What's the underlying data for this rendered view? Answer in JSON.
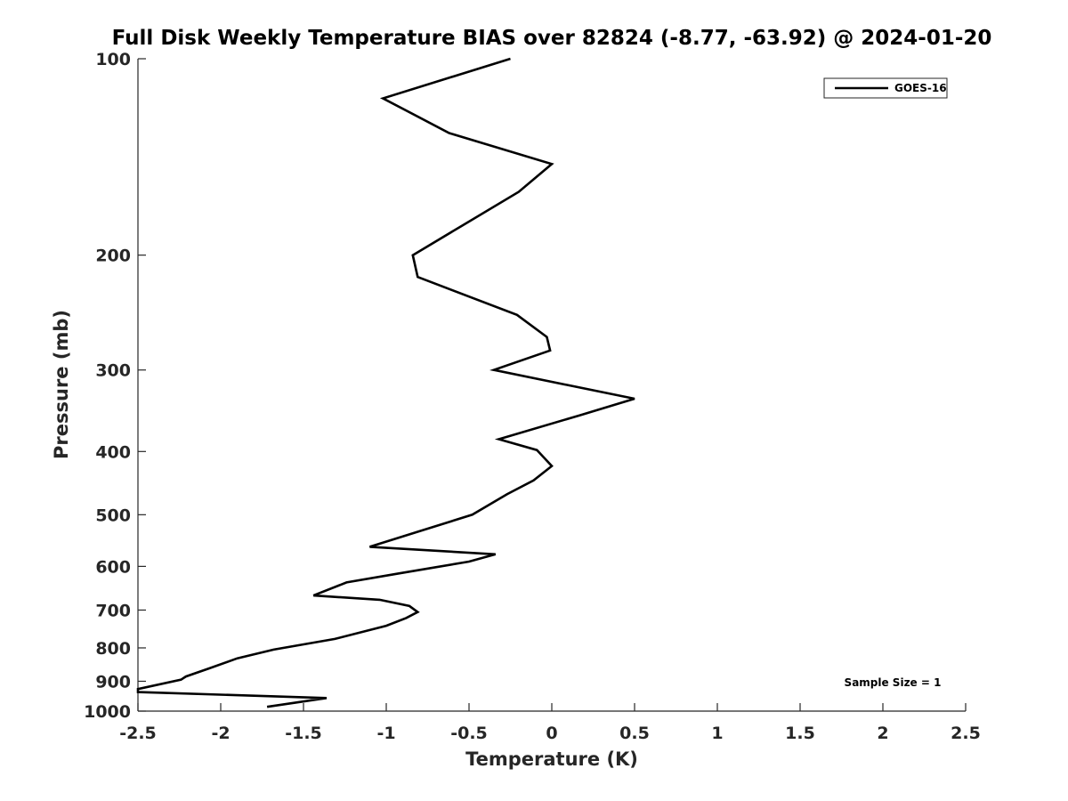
{
  "chart_data": {
    "type": "line",
    "title": "Full Disk Weekly Temperature BIAS over 82824 (-8.77, -63.92) @ 2024-01-20",
    "xlabel": "Temperature (K)",
    "ylabel": "Pressure (mb)",
    "xlim": [
      -2.5,
      2.5
    ],
    "ylim": [
      100,
      1000
    ],
    "y_scale": "log",
    "y_reversed": true,
    "grid": false,
    "x_ticks": [
      "-2.5",
      "-2",
      "-1.5",
      "-1",
      "-0.5",
      "0",
      "0.5",
      "1",
      "1.5",
      "2",
      "2.5"
    ],
    "y_ticks": [
      "100",
      "200",
      "300",
      "400",
      "500",
      "600",
      "700",
      "800",
      "900",
      "1000"
    ],
    "legend_position": "top-right",
    "annotation": "Sample Size = 1",
    "series": [
      {
        "name": "GOES-16",
        "color": "#000000",
        "x": [
          -0.25,
          -1.02,
          -0.62,
          0.0,
          -0.2,
          -0.84,
          -0.81,
          -0.21,
          -0.03,
          -0.01,
          -0.35,
          0.5,
          0.17,
          -0.32,
          -0.09,
          0.0,
          -0.11,
          -0.27,
          -0.48,
          -0.81,
          -1.1,
          -0.34,
          -0.5,
          -0.92,
          -1.24,
          -1.44,
          -1.04,
          -0.86,
          -0.81,
          -0.88,
          -1.0,
          -1.31,
          -1.68,
          -1.9,
          -2.07,
          -2.21,
          -2.24,
          -2.5,
          -2.5,
          -1.36,
          -1.72
        ],
        "y": [
          100,
          115,
          130,
          145,
          160,
          200,
          216,
          247,
          267,
          280,
          300,
          332,
          352,
          383,
          398,
          421,
          443,
          465,
          500,
          531,
          560,
          575,
          590,
          615,
          635,
          665,
          675,
          690,
          705,
          720,
          740,
          775,
          805,
          830,
          860,
          885,
          895,
          925,
          935,
          955,
          985
        ]
      }
    ]
  }
}
